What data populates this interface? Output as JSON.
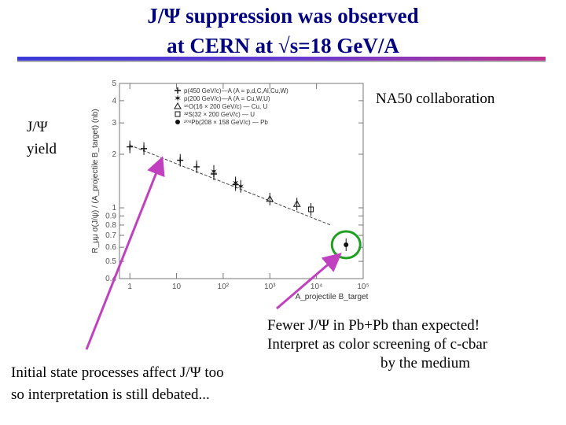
{
  "slide": {
    "title_line1": "J/Ψ suppression was observed",
    "title_line2": "at CERN at √s=18 GeV/A",
    "collab": "NA50 collaboration",
    "yield_line1": "J/Ψ",
    "yield_line2": "yield",
    "fewer_line1": "Fewer J/Ψ in Pb+Pb than expected!",
    "fewer_line2": "Interpret as color screening of c-cbar",
    "fewer_line3": "by the medium",
    "initial_line1": "Initial state processes affect J/Ψ too",
    "initial_line2": "so interpretation is still debated..."
  },
  "colors": {
    "title": "#000080",
    "rule": "#4040d0",
    "arrow": "#c040c0",
    "circle": "#20a020"
  },
  "chart_data": {
    "type": "scatter",
    "xscale": "log",
    "yscale": "log",
    "xlim": [
      0.6,
      100000
    ],
    "ylim": [
      0.4,
      5
    ],
    "xlabel": "A_projectile B_target",
    "ylabel": "R_μμ σ(J/ψ) / (A_projectile B_target) (nb)",
    "x_ticks": [
      {
        "v": 1,
        "label": "1"
      },
      {
        "v": 10,
        "label": "10"
      },
      {
        "v": 100,
        "label": "10²"
      },
      {
        "v": 1000,
        "label": "10³"
      },
      {
        "v": 10000,
        "label": "10⁴"
      },
      {
        "v": 100000,
        "label": "10⁵"
      }
    ],
    "y_ticks": [
      {
        "v": 0.4,
        "label": "0.4"
      },
      {
        "v": 0.5,
        "label": "0.5"
      },
      {
        "v": 0.6,
        "label": "0.6"
      },
      {
        "v": 0.7,
        "label": "0.7"
      },
      {
        "v": 0.8,
        "label": "0.8"
      },
      {
        "v": 0.9,
        "label": "0.9"
      },
      {
        "v": 1,
        "label": "1"
      },
      {
        "v": 2,
        "label": "2"
      },
      {
        "v": 3,
        "label": "3"
      },
      {
        "v": 4,
        "label": "4"
      },
      {
        "v": 5,
        "label": "5"
      }
    ],
    "legend": [
      {
        "marker": "plus",
        "label": "p(450 GeV/c)—A (A = p,d,C,Al,Cu,W)"
      },
      {
        "marker": "star",
        "label": "p(200 GeV/c)—A (A = Cu,W,U)"
      },
      {
        "marker": "triangle",
        "label": "¹⁶O(16 × 200 GeV/c) — Cu, U"
      },
      {
        "marker": "square",
        "label": "³²S(32 × 200 GeV/c) — U"
      },
      {
        "marker": "dot",
        "label": "²⁰⁸Pb(208 × 158 GeV/c) — Pb"
      }
    ],
    "series": [
      {
        "name": "p(450 GeV/c)—A (A = p,d,C,Al,Cu,W)",
        "marker": "plus",
        "points": [
          {
            "x": 1,
            "y": 2.2
          },
          {
            "x": 2,
            "y": 2.15
          },
          {
            "x": 12,
            "y": 1.85
          },
          {
            "x": 27,
            "y": 1.7
          },
          {
            "x": 63,
            "y": 1.55
          },
          {
            "x": 184,
            "y": 1.35
          }
        ]
      },
      {
        "name": "p(200 GeV/c)—A (A = Cu,W,U)",
        "marker": "star",
        "points": [
          {
            "x": 63,
            "y": 1.6
          },
          {
            "x": 184,
            "y": 1.38
          },
          {
            "x": 238,
            "y": 1.32
          }
        ]
      },
      {
        "name": "¹⁶O(16 × 200 GeV/c) — Cu, U",
        "marker": "triangle",
        "points": [
          {
            "x": 1000,
            "y": 1.12
          },
          {
            "x": 3800,
            "y": 1.05
          }
        ]
      },
      {
        "name": "³²S(32 × 200 GeV/c) — U",
        "marker": "square",
        "points": [
          {
            "x": 7600,
            "y": 0.98
          }
        ]
      },
      {
        "name": "²⁰⁸Pb(208 × 158 GeV/c) — Pb",
        "marker": "dot",
        "points": [
          {
            "x": 43000,
            "y": 0.62
          }
        ]
      }
    ],
    "fit_line": [
      {
        "x": 1,
        "y": 2.25
      },
      {
        "x": 20000,
        "y": 0.8
      }
    ],
    "grid": false
  }
}
